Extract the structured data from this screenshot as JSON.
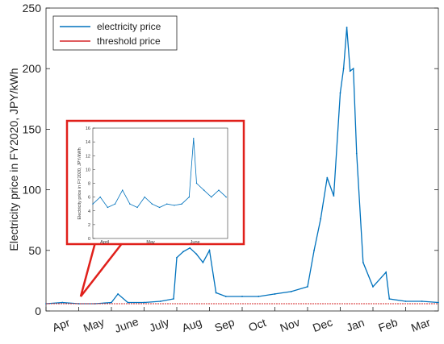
{
  "chart_data": {
    "type": "line",
    "ylabel": "Electricity price in FY2020, JPY/kWh",
    "xlabel": "",
    "ylim": [
      0,
      250
    ],
    "yticks": [
      0,
      50,
      100,
      150,
      200,
      250
    ],
    "months": [
      "Apr",
      "May",
      "June",
      "July",
      "Aug",
      "Sep",
      "Oct",
      "Nov",
      "Dec",
      "Jan",
      "Feb",
      "Mar"
    ],
    "legend": {
      "position": "top-left",
      "entries": [
        {
          "label": "electricity price",
          "color": "#0072BD"
        },
        {
          "label": "threshold price",
          "color": "#D62728"
        }
      ]
    },
    "series": [
      {
        "name": "electricity price",
        "color": "#0072BD",
        "x_month_index": [
          0.0,
          0.5,
          1.0,
          1.5,
          2.0,
          2.2,
          2.5,
          3.0,
          3.5,
          3.9,
          4.0,
          4.2,
          4.4,
          4.6,
          4.8,
          5.0,
          5.2,
          5.5,
          6.0,
          6.5,
          7.0,
          7.5,
          8.0,
          8.2,
          8.4,
          8.6,
          8.8,
          9.0,
          9.1,
          9.2,
          9.3,
          9.4,
          9.5,
          9.7,
          10.0,
          10.4,
          10.5,
          11.0,
          11.5,
          12.0
        ],
        "values": [
          6,
          7,
          6,
          6,
          7,
          14,
          7,
          7,
          8,
          10,
          44,
          49,
          52,
          47,
          40,
          50,
          15,
          12,
          12,
          12,
          14,
          16,
          20,
          50,
          76,
          110,
          95,
          180,
          200,
          234,
          198,
          200,
          130,
          40,
          20,
          32,
          10,
          8,
          8,
          7
        ]
      },
      {
        "name": "threshold price",
        "color": "#D62728",
        "x_month_index": [
          0,
          12
        ],
        "values": [
          6,
          6
        ]
      }
    ],
    "inset": {
      "ylabel": "Electricity price in FY2020, JPY/kWh",
      "ylim": [
        0,
        16
      ],
      "yticks": [
        0,
        2,
        4,
        6,
        8,
        10,
        12,
        14,
        16
      ],
      "months": [
        "April",
        "May",
        "June"
      ],
      "x_day": [
        0,
        5,
        10,
        15,
        20,
        25,
        30,
        35,
        40,
        45,
        50,
        55,
        60,
        65,
        68,
        70,
        75,
        80,
        85,
        90
      ],
      "values": [
        5,
        6,
        4.5,
        5,
        7,
        5,
        4.5,
        6,
        5,
        4.5,
        5,
        4.8,
        5,
        6,
        14.5,
        8,
        7,
        6,
        7,
        6
      ]
    }
  }
}
